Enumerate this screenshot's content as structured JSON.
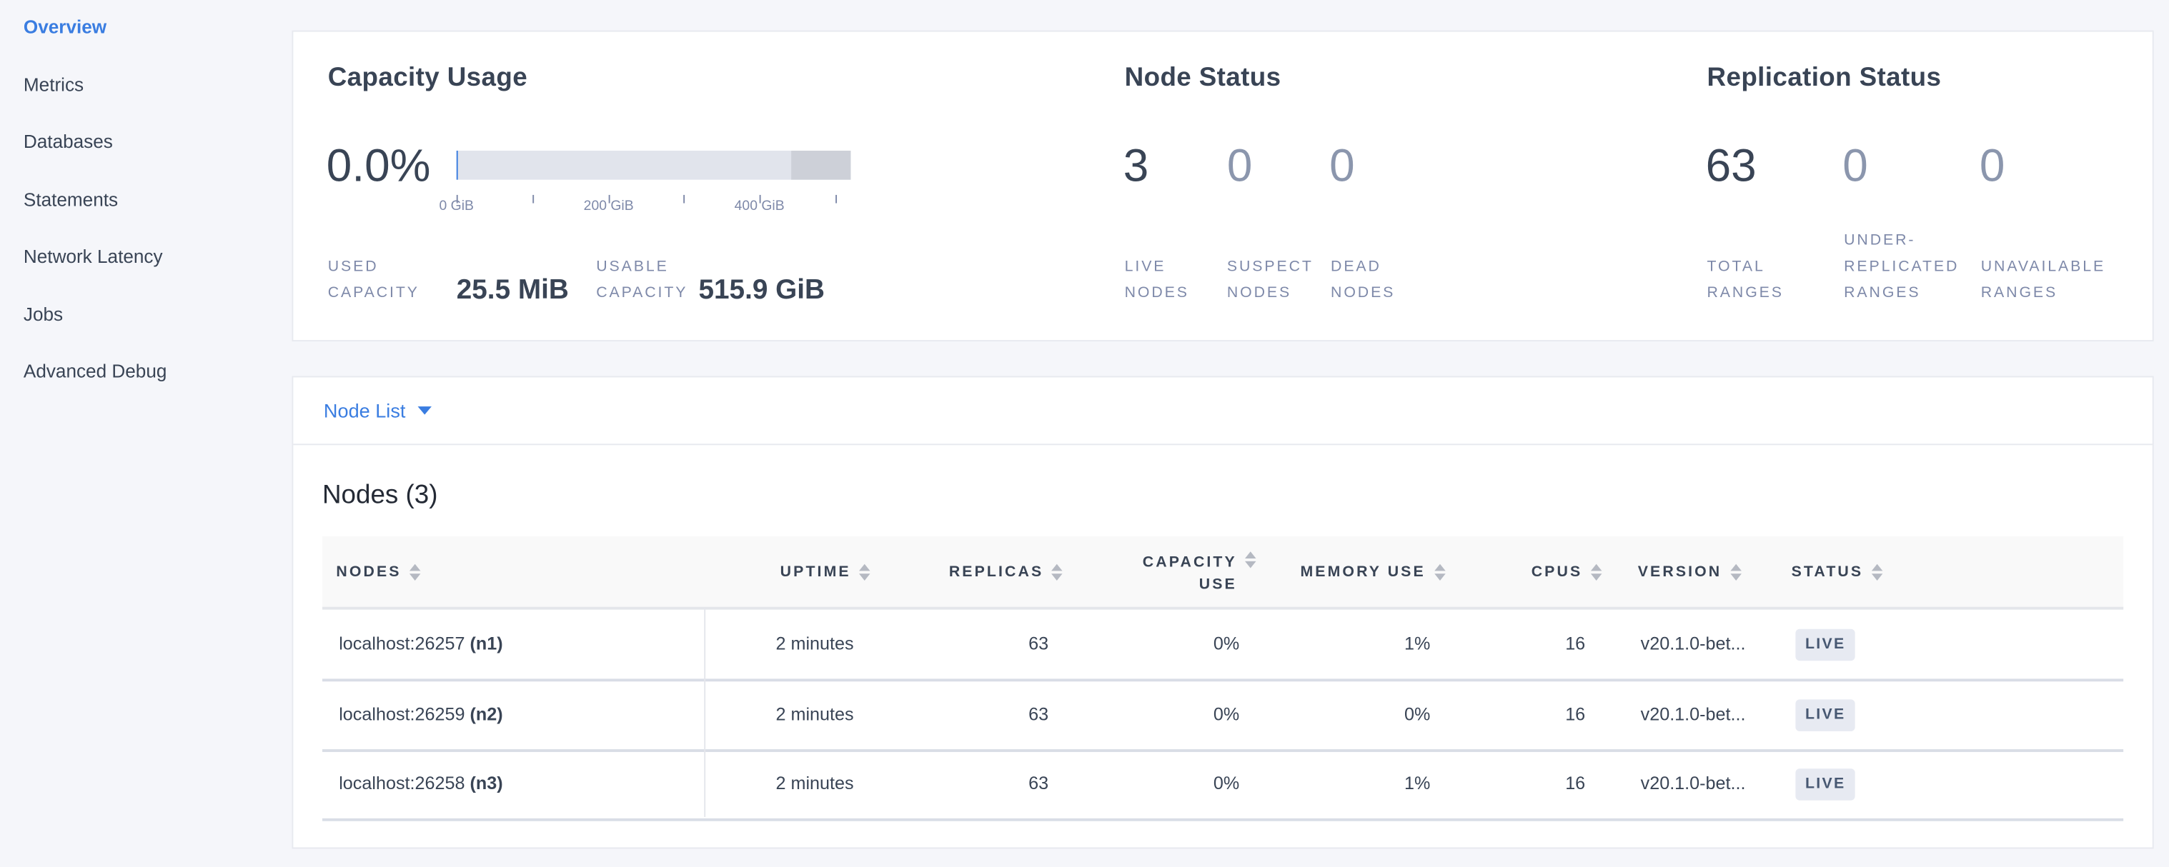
{
  "sidebar": {
    "items": [
      {
        "label": "Overview",
        "active": true
      },
      {
        "label": "Metrics"
      },
      {
        "label": "Databases"
      },
      {
        "label": "Statements"
      },
      {
        "label": "Network Latency"
      },
      {
        "label": "Jobs"
      },
      {
        "label": "Advanced Debug"
      }
    ]
  },
  "capacity": {
    "title": "Capacity Usage",
    "percent": "0.0%",
    "used_fraction": 0.0,
    "ticks": [
      "0 GiB",
      "200 GiB",
      "400 GiB"
    ],
    "used_label_1": "Used",
    "used_label_2": "Capacity",
    "used_value": "25.5 MiB",
    "usable_label_1": "Usable",
    "usable_label_2": "Capacity",
    "usable_value": "515.9 GiB"
  },
  "node_status": {
    "title": "Node Status",
    "stats": [
      {
        "value": "3",
        "l1": "Live",
        "l2": "Nodes"
      },
      {
        "value": "0",
        "l1": "Suspect",
        "l2": "Nodes"
      },
      {
        "value": "0",
        "l1": "Dead",
        "l2": "Nodes"
      }
    ]
  },
  "replication_status": {
    "title": "Replication Status",
    "stats": [
      {
        "value": "63",
        "l1": "",
        "l2": "Total",
        "l3": "Ranges"
      },
      {
        "value": "0",
        "l1": "Under-",
        "l2": "Replicated",
        "l3": "Ranges"
      },
      {
        "value": "0",
        "l1": "",
        "l2": "Unavailable",
        "l3": "Ranges"
      }
    ]
  },
  "node_list": {
    "dropdown_label": "Node List",
    "heading": "Nodes (3)",
    "columns": [
      "Nodes",
      "Uptime",
      "Replicas",
      "Capacity",
      "Use",
      "Memory Use",
      "CPUs",
      "Version",
      "Status"
    ],
    "rows": [
      {
        "host": "localhost:26257",
        "id": "(n1)",
        "uptime": "2 minutes",
        "replicas": "63",
        "capacity": "0%",
        "memory": "1%",
        "cpus": "16",
        "version": "v20.1.0-bet...",
        "status": "LIVE"
      },
      {
        "host": "localhost:26259",
        "id": "(n2)",
        "uptime": "2 minutes",
        "replicas": "63",
        "capacity": "0%",
        "memory": "0%",
        "cpus": "16",
        "version": "v20.1.0-bet...",
        "status": "LIVE"
      },
      {
        "host": "localhost:26258",
        "id": "(n3)",
        "uptime": "2 minutes",
        "replicas": "63",
        "capacity": "0%",
        "memory": "1%",
        "cpus": "16",
        "version": "v20.1.0-bet...",
        "status": "LIVE"
      }
    ]
  },
  "colors": {
    "accent": "#3a7de1",
    "text": "#394455",
    "muted": "#8b96ad",
    "bar_bg": "#e1e4ec",
    "bar_reserved": "#cdd0d8"
  }
}
